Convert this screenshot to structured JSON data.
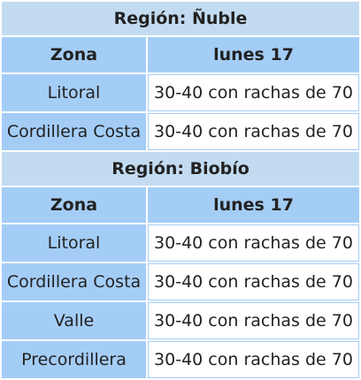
{
  "sections": [
    {
      "region": "Región: Ñuble",
      "header": {
        "zona": "Zona",
        "day": "lunes 17"
      },
      "rows": [
        {
          "zona": "Litoral",
          "value": "30-40 con rachas de 70"
        },
        {
          "zona": "Cordillera Costa",
          "value": "30-40 con rachas de 70"
        }
      ]
    },
    {
      "region": "Región: Biobío",
      "header": {
        "zona": "Zona",
        "day": "lunes 17"
      },
      "rows": [
        {
          "zona": "Litoral",
          "value": "30-40 con rachas de 70"
        },
        {
          "zona": "Cordillera Costa",
          "value": "30-40 con rachas de 70"
        },
        {
          "zona": "Valle",
          "value": "30-40 con rachas de 70"
        },
        {
          "zona": "Precordillera",
          "value": "30-40 con rachas de 70"
        }
      ]
    }
  ],
  "colors": {
    "region_background": "#c2dbf0",
    "header_background": "#a4cdf6",
    "zona_background": "#a4cdf6",
    "value_background": "#ffffff",
    "text": "#222222"
  }
}
